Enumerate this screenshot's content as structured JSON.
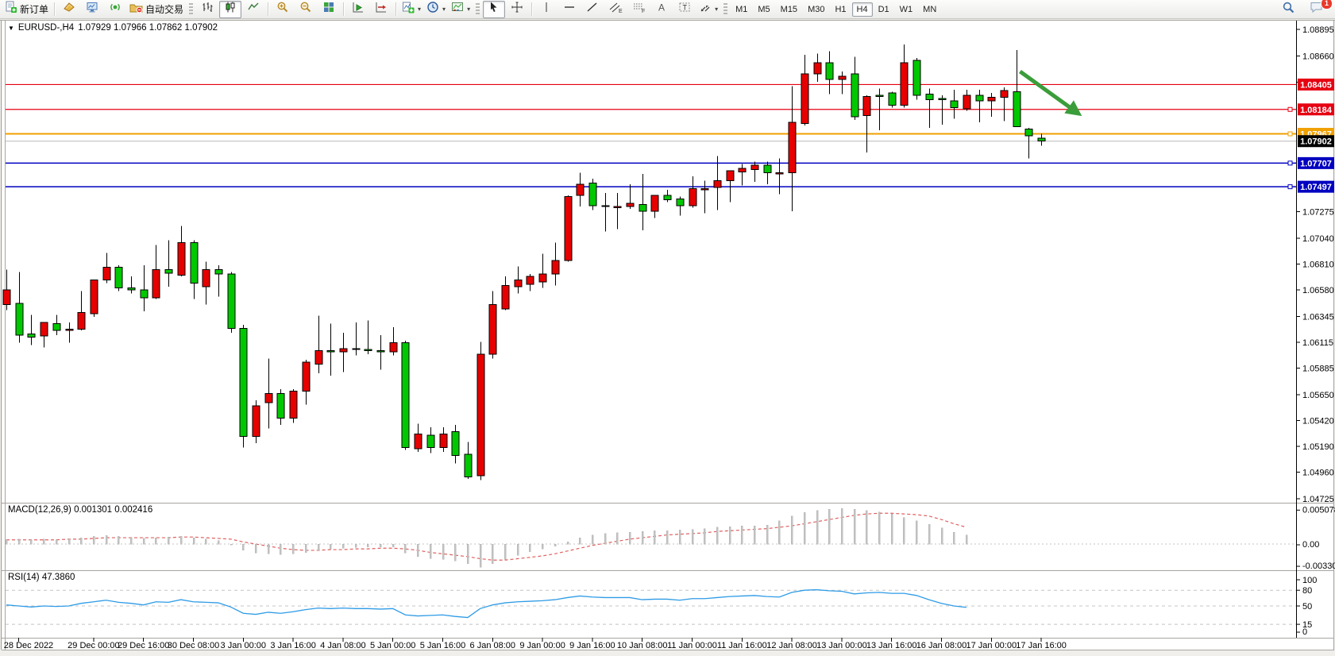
{
  "toolbar": {
    "new_order_label": "新订单",
    "auto_trading_label": "自动交易",
    "timeframes": [
      "M1",
      "M5",
      "M15",
      "M30",
      "H1",
      "H4",
      "D1",
      "W1",
      "MN"
    ],
    "active_timeframe": "H4",
    "notification_count": "1"
  },
  "header": {
    "title": "EURUSD-,H4",
    "ohlc": "1.07929 1.07966 1.07862 1.07902"
  },
  "panes": {
    "macd_label": "MACD(12,26,9) 0.001301 0.002416",
    "rsi_label": "RSI(14) 47.3860"
  },
  "chart_data": {
    "type": "candlestick",
    "symbol": "EURUSD-",
    "timeframe": "H4",
    "current_bar": {
      "open": 1.07929,
      "high": 1.07966,
      "low": 1.07862,
      "close": 1.07902
    },
    "colors": {
      "bull": "#e60000",
      "bear": "#00c800",
      "wick": "#000000",
      "macd_hist": "#c4c4c4",
      "macd_signal": "#e06060",
      "rsi_line": "#2e9be6",
      "arrow": "#3a9d3a",
      "current_price_line": "#b8b8b8"
    },
    "price_axis": {
      "ylim": [
        1.04725,
        1.08895
      ],
      "ticks": [
        "1.08895",
        "1.08660",
        "1.08425",
        "1.07275",
        "1.07040",
        "1.06810",
        "1.06580",
        "1.06345",
        "1.06115",
        "1.05885",
        "1.05650",
        "1.05420",
        "1.05190",
        "1.04960",
        "1.04725"
      ]
    },
    "hlines": [
      {
        "label": "1.08405",
        "price": 1.08405,
        "color": "#e60012",
        "width": 1.2,
        "anchor": false
      },
      {
        "label": "1.08184",
        "price": 1.08184,
        "color": "#e60012",
        "width": 1.2,
        "anchor": true
      },
      {
        "label": "1.07967",
        "price": 1.07967,
        "color": "#f0a000",
        "width": 2,
        "anchor": true
      },
      {
        "label": "1.07707",
        "price": 1.07707,
        "color": "#0000c0",
        "width": 1.6,
        "anchor": true
      },
      {
        "label": "1.07497",
        "price": 1.07497,
        "color": "#0000c0",
        "width": 1.6,
        "anchor": true
      }
    ],
    "current_price": {
      "label": "1.07902",
      "price": 1.07902
    },
    "arrow_annotation": {
      "from": {
        "index": 81.3,
        "price": 1.08521
      },
      "to": {
        "index": 85.9,
        "price": 1.08154
      }
    },
    "candles": [
      [
        1.0645,
        1.0676,
        1.064,
        1.0658
      ],
      [
        1.0646,
        1.0674,
        1.0611,
        1.0618
      ],
      [
        1.0619,
        1.0636,
        1.0609,
        1.0616
      ],
      [
        1.0617,
        1.0629,
        1.0607,
        1.0629
      ],
      [
        1.0628,
        1.0636,
        1.0618,
        1.0622
      ],
      [
        1.0622,
        1.0629,
        1.0611,
        1.0623
      ],
      [
        1.0623,
        1.0657,
        1.0622,
        1.0638
      ],
      [
        1.0637,
        1.0667,
        1.0634,
        1.0667
      ],
      [
        1.0667,
        1.0691,
        1.0664,
        1.0678
      ],
      [
        1.0678,
        1.068,
        1.0657,
        1.066
      ],
      [
        1.066,
        1.067,
        1.0655,
        1.0658
      ],
      [
        1.0658,
        1.068,
        1.0639,
        1.0651
      ],
      [
        1.0651,
        1.0698,
        1.065,
        1.0676
      ],
      [
        1.0676,
        1.0702,
        1.0661,
        1.0673
      ],
      [
        1.0671,
        1.0715,
        1.067,
        1.07
      ],
      [
        1.07,
        1.0702,
        1.065,
        1.0664
      ],
      [
        1.0661,
        1.0683,
        1.0645,
        1.0676
      ],
      [
        1.0676,
        1.068,
        1.0652,
        1.0672
      ],
      [
        1.0672,
        1.0674,
        1.062,
        1.0624
      ],
      [
        1.0624,
        1.0627,
        1.0518,
        1.0528
      ],
      [
        1.0528,
        1.056,
        1.0522,
        1.0555
      ],
      [
        1.0558,
        1.0597,
        1.0535,
        1.0566
      ],
      [
        1.0566,
        1.057,
        1.0538,
        1.0544
      ],
      [
        1.0544,
        1.057,
        1.054,
        1.0568
      ],
      [
        1.0568,
        1.0596,
        1.0556,
        1.0594
      ],
      [
        1.0592,
        1.0635,
        1.0584,
        1.0604
      ],
      [
        1.0604,
        1.0628,
        1.0582,
        1.0603
      ],
      [
        1.0603,
        1.062,
        1.0585,
        1.0606
      ],
      [
        1.0606,
        1.0629,
        1.06,
        1.0605
      ],
      [
        1.0605,
        1.0631,
        1.0601,
        1.0604
      ],
      [
        1.0604,
        1.0618,
        1.0587,
        1.0603
      ],
      [
        1.0603,
        1.0625,
        1.06,
        1.0611
      ],
      [
        1.0611,
        1.0613,
        1.0516,
        1.0518
      ],
      [
        1.0517,
        1.0539,
        1.0514,
        1.053
      ],
      [
        1.0529,
        1.0536,
        1.0513,
        1.0518
      ],
      [
        1.0518,
        1.0536,
        1.0514,
        1.053
      ],
      [
        1.0532,
        1.0538,
        1.0504,
        1.0511
      ],
      [
        1.0512,
        1.0523,
        1.049,
        1.0492
      ],
      [
        1.0493,
        1.0612,
        1.0489,
        1.0601
      ],
      [
        1.0601,
        1.0657,
        1.0597,
        1.0645
      ],
      [
        1.0641,
        1.067,
        1.064,
        1.0662
      ],
      [
        1.0661,
        1.0679,
        1.0655,
        1.0667
      ],
      [
        1.0663,
        1.0672,
        1.0657,
        1.067
      ],
      [
        1.0665,
        1.069,
        1.066,
        1.0672
      ],
      [
        1.0672,
        1.07,
        1.0662,
        1.0684
      ],
      [
        1.0684,
        1.0742,
        1.0683,
        1.0741
      ],
      [
        1.0742,
        1.0762,
        1.0732,
        1.0752
      ],
      [
        1.0753,
        1.0757,
        1.0729,
        1.0733
      ],
      [
        1.0733,
        1.0744,
        1.071,
        1.0732
      ],
      [
        1.0732,
        1.0744,
        1.0712,
        1.0732
      ],
      [
        1.0732,
        1.0752,
        1.073,
        1.0735
      ],
      [
        1.0734,
        1.0761,
        1.0711,
        1.0728
      ],
      [
        1.0728,
        1.0742,
        1.0722,
        1.0742
      ],
      [
        1.0742,
        1.0747,
        1.0736,
        1.0738
      ],
      [
        1.0739,
        1.0741,
        1.0724,
        1.0733
      ],
      [
        1.0733,
        1.0759,
        1.0731,
        1.0748
      ],
      [
        1.0747,
        1.0755,
        1.0726,
        1.0748
      ],
      [
        1.0749,
        1.0777,
        1.0729,
        1.0755
      ],
      [
        1.0755,
        1.0764,
        1.0736,
        1.0764
      ],
      [
        1.0763,
        1.077,
        1.0751,
        1.0766
      ],
      [
        1.0765,
        1.0772,
        1.0754,
        1.0769
      ],
      [
        1.0769,
        1.0772,
        1.0752,
        1.0762
      ],
      [
        1.0762,
        1.0775,
        1.0743,
        1.0762
      ],
      [
        1.0762,
        1.0839,
        1.0728,
        1.0807
      ],
      [
        1.0806,
        1.0867,
        1.0804,
        1.085
      ],
      [
        1.085,
        1.0868,
        1.0843,
        1.086
      ],
      [
        1.086,
        1.087,
        1.0832,
        1.0845
      ],
      [
        1.0845,
        1.0852,
        1.0832,
        1.0848
      ],
      [
        1.085,
        1.0865,
        1.0809,
        1.0812
      ],
      [
        1.0813,
        1.0831,
        1.078,
        1.083
      ],
      [
        1.0831,
        1.0837,
        1.08,
        1.083
      ],
      [
        1.0833,
        1.0834,
        1.082,
        1.0822
      ],
      [
        1.0822,
        1.0876,
        1.082,
        1.086
      ],
      [
        1.0862,
        1.0864,
        1.0827,
        1.0831
      ],
      [
        1.0832,
        1.0837,
        1.0802,
        1.0827
      ],
      [
        1.0828,
        1.0831,
        1.0805,
        1.0827
      ],
      [
        1.0826,
        1.0836,
        1.081,
        1.082
      ],
      [
        1.0819,
        1.0836,
        1.0817,
        1.0831
      ],
      [
        1.0831,
        1.0836,
        1.0807,
        1.0826
      ],
      [
        1.0826,
        1.0833,
        1.0812,
        1.0829
      ],
      [
        1.0829,
        1.0838,
        1.0808,
        1.0835
      ],
      [
        1.0834,
        1.0871,
        1.0803,
        1.0803
      ],
      [
        1.0801,
        1.0802,
        1.0775,
        1.0795
      ],
      [
        1.07929,
        1.07966,
        1.07862,
        1.07902
      ]
    ],
    "time_labels": [
      {
        "text": "28 Dec 2022",
        "index": 1
      },
      {
        "text": "29 Dec 00:00",
        "index": 7
      },
      {
        "text": "29 Dec 16:00",
        "index": 11
      },
      {
        "text": "30 Dec 08:00",
        "index": 15
      },
      {
        "text": "3 Jan 00:00",
        "index": 19
      },
      {
        "text": "3 Jan 16:00",
        "index": 23
      },
      {
        "text": "4 Jan 08:00",
        "index": 27
      },
      {
        "text": "5 Jan 00:00",
        "index": 31
      },
      {
        "text": "5 Jan 16:00",
        "index": 35
      },
      {
        "text": "6 Jan 08:00",
        "index": 39
      },
      {
        "text": "9 Jan 00:00",
        "index": 43
      },
      {
        "text": "9 Jan 16:00",
        "index": 47
      },
      {
        "text": "10 Jan 08:00",
        "index": 51
      },
      {
        "text": "11 Jan 00:00",
        "index": 55
      },
      {
        "text": "11 Jan 16:00",
        "index": 59
      },
      {
        "text": "12 Jan 08:00",
        "index": 63
      },
      {
        "text": "13 Jan 00:00",
        "index": 67
      },
      {
        "text": "13 Jan 16:00",
        "index": 71
      },
      {
        "text": "16 Jan 08:00",
        "index": 75
      },
      {
        "text": "17 Jan 00:00",
        "index": 79
      },
      {
        "text": "17 Jan 16:00",
        "index": 83
      }
    ],
    "macd": {
      "params": "12,26,9",
      "value_main": 0.001301,
      "value_signal": 0.002416,
      "axis_labels": [
        "0.005078",
        "0.00",
        "-0.003301"
      ],
      "ylim": [
        -0.003301,
        0.005078
      ],
      "main": [
        0.0006,
        0.0007,
        0.0006,
        0.0007,
        0.0006,
        0.0007,
        0.0009,
        0.0011,
        0.0012,
        0.0011,
        0.0009,
        0.0008,
        0.0009,
        0.001,
        0.0011,
        0.0009,
        0.0007,
        0.0005,
        0.0,
        -0.0009,
        -0.0013,
        -0.0014,
        -0.0015,
        -0.0014,
        -0.0012,
        -0.0009,
        -0.0007,
        -0.0006,
        -0.0005,
        -0.0004,
        -0.0004,
        -0.0004,
        -0.0013,
        -0.0018,
        -0.0021,
        -0.0022,
        -0.0024,
        -0.0028,
        -0.0033,
        -0.0028,
        -0.0022,
        -0.0016,
        -0.0011,
        -0.0007,
        -0.0003,
        0.0003,
        0.0009,
        0.0013,
        0.0015,
        0.0016,
        0.0017,
        0.0018,
        0.0019,
        0.0019,
        0.002,
        0.0021,
        0.0022,
        0.0024,
        0.0025,
        0.0026,
        0.0026,
        0.0027,
        0.0033,
        0.004,
        0.0045,
        0.0048,
        0.005,
        0.00508,
        0.005,
        0.0048,
        0.0046,
        0.0043,
        0.0038,
        0.0033,
        0.0028,
        0.0023,
        0.0017,
        0.0013
      ],
      "signal": [
        0.0006,
        0.0006,
        0.0006,
        0.0006,
        0.0006,
        0.0007,
        0.0007,
        0.0008,
        0.0009,
        0.0009,
        0.0009,
        0.0009,
        0.0009,
        0.0009,
        0.001,
        0.001,
        0.0009,
        0.0008,
        0.0007,
        0.0003,
        0.0,
        -0.0003,
        -0.0006,
        -0.0008,
        -0.0009,
        -0.0009,
        -0.0008,
        -0.0008,
        -0.0007,
        -0.0007,
        -0.0006,
        -0.0006,
        -0.0007,
        -0.0009,
        -0.0012,
        -0.0014,
        -0.0016,
        -0.0018,
        -0.0021,
        -0.0023,
        -0.0023,
        -0.0021,
        -0.0019,
        -0.0017,
        -0.0014,
        -0.001,
        -0.0006,
        -0.0002,
        0.0001,
        0.0004,
        0.0007,
        0.0009,
        0.0011,
        0.0013,
        0.0014,
        0.0015,
        0.0016,
        0.0018,
        0.0019,
        0.002,
        0.0021,
        0.0022,
        0.0024,
        0.0026,
        0.0029,
        0.0032,
        0.0035,
        0.0038,
        0.0041,
        0.0043,
        0.0044,
        0.0044,
        0.0043,
        0.0042,
        0.004,
        0.0035,
        0.0029,
        0.0024
      ]
    },
    "rsi": {
      "period": 14,
      "value": 47.386,
      "levels": [
        80,
        50,
        15
      ],
      "axis_labels": [
        "100",
        "80",
        "50",
        "15",
        "0"
      ],
      "ylim": [
        0,
        100
      ],
      "values": [
        52,
        50,
        48,
        50,
        49,
        50,
        55,
        58,
        61,
        57,
        55,
        52,
        58,
        57,
        62,
        58,
        57,
        56,
        48,
        36,
        34,
        38,
        36,
        39,
        43,
        46,
        45,
        46,
        45,
        45,
        44,
        45,
        33,
        31,
        32,
        33,
        30,
        28,
        45,
        52,
        56,
        58,
        59,
        60,
        62,
        66,
        69,
        67,
        66,
        66,
        66,
        62,
        63,
        63,
        61,
        64,
        64,
        66,
        68,
        69,
        70,
        68,
        67,
        76,
        80,
        81,
        79,
        78,
        73,
        75,
        76,
        74,
        74,
        70,
        62,
        55,
        50,
        47.4
      ]
    }
  }
}
